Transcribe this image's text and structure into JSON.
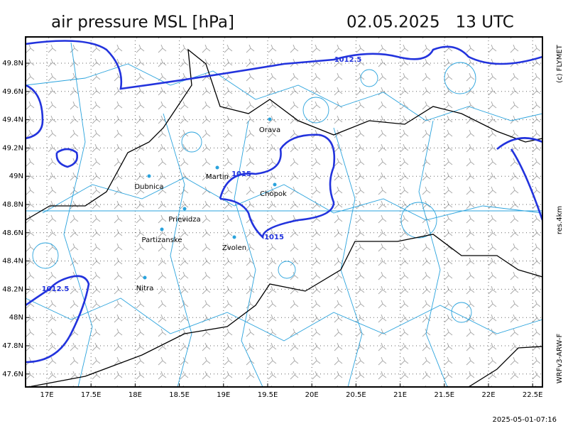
{
  "header": {
    "title": "air pressure MSL [hPa]",
    "datetime": "02.05.2025   13 UTC"
  },
  "map": {
    "lat_labels": [
      "49.8N",
      "49.6N",
      "49.4N",
      "49.2N",
      "49N",
      "48.8N",
      "48.6N",
      "48.4N",
      "48.2N",
      "48N",
      "47.8N",
      "47.6N"
    ],
    "lon_labels": [
      "17E",
      "17.5E",
      "18E",
      "18.5E",
      "19E",
      "19.5E",
      "20E",
      "20.5E",
      "21E",
      "21.5E",
      "22E",
      "22.5E"
    ],
    "cities": [
      "Orava",
      "Martin",
      "Dubnica",
      "Chopok",
      "Prievidza",
      "Partizanske",
      "Zvolen",
      "Nitra"
    ],
    "isobar_labels": [
      "1012.5",
      "1015",
      "1015",
      "1012.5"
    ]
  },
  "side": {
    "copyright": "(c) FLYMET",
    "resolution": "res.4km",
    "model": "WRFv3-ARW-F"
  },
  "footer": {
    "timestamp": "2025-05-01-07:16"
  }
}
